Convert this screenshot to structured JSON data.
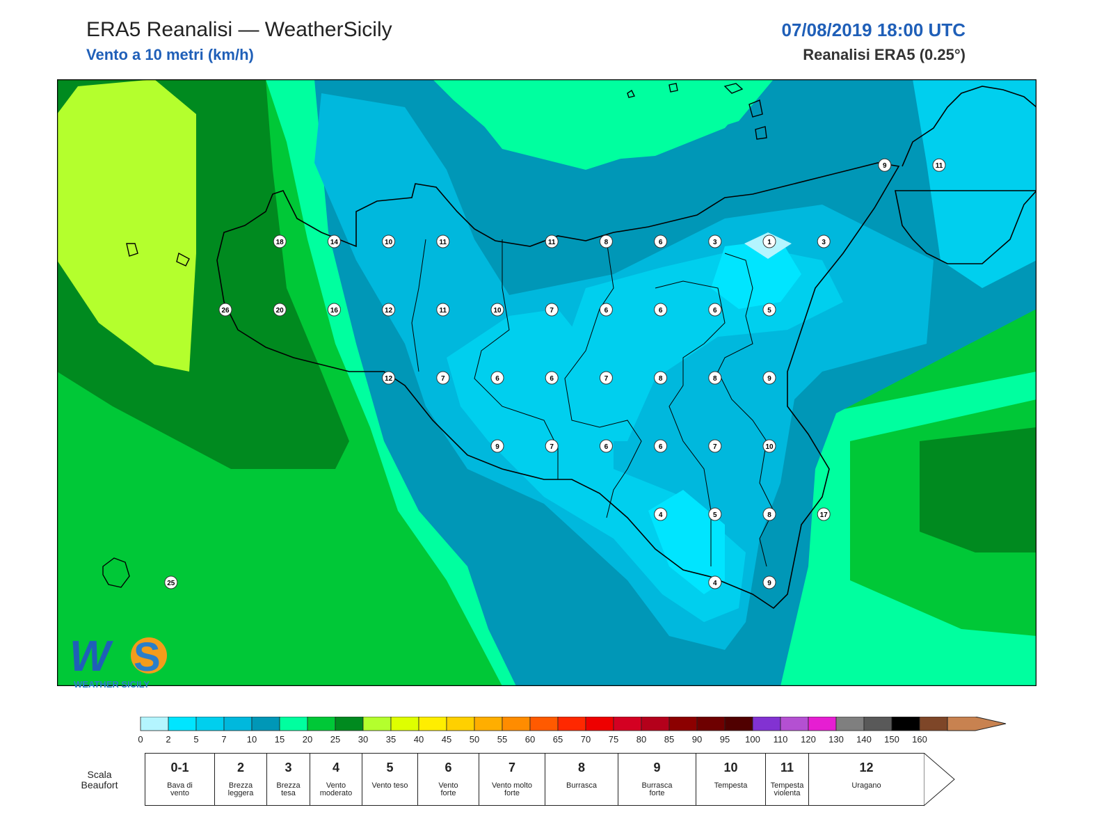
{
  "header": {
    "title": "ERA5 Reanalisi — WeatherSicily",
    "subtitle": "Vento a 10 metri (km/h)",
    "datetime": "07/08/2019 18:00 UTC",
    "source": "Reanalisi ERA5 (0.25°)"
  },
  "map": {
    "region": "Sicilia",
    "wind_speed_labels_kmh": [
      {
        "v": "9",
        "lon": 15.28,
        "lat": 38.53
      },
      {
        "v": "11",
        "lon": 15.53,
        "lat": 38.53
      },
      {
        "v": "18",
        "lon": 12.5,
        "lat": 38.25
      },
      {
        "v": "14",
        "lon": 12.75,
        "lat": 38.25
      },
      {
        "v": "10",
        "lon": 13.0,
        "lat": 38.25
      },
      {
        "v": "11",
        "lon": 13.25,
        "lat": 38.25
      },
      {
        "v": "11",
        "lon": 13.75,
        "lat": 38.25
      },
      {
        "v": "8",
        "lon": 14.0,
        "lat": 38.25
      },
      {
        "v": "6",
        "lon": 14.25,
        "lat": 38.25
      },
      {
        "v": "3",
        "lon": 14.5,
        "lat": 38.25
      },
      {
        "v": "1",
        "lon": 14.75,
        "lat": 38.25
      },
      {
        "v": "3",
        "lon": 15.0,
        "lat": 38.25
      },
      {
        "v": "26",
        "lon": 12.25,
        "lat": 38.0
      },
      {
        "v": "20",
        "lon": 12.5,
        "lat": 38.0
      },
      {
        "v": "16",
        "lon": 12.75,
        "lat": 38.0
      },
      {
        "v": "12",
        "lon": 13.0,
        "lat": 38.0
      },
      {
        "v": "11",
        "lon": 13.25,
        "lat": 38.0
      },
      {
        "v": "10",
        "lon": 13.5,
        "lat": 38.0
      },
      {
        "v": "7",
        "lon": 13.75,
        "lat": 38.0
      },
      {
        "v": "6",
        "lon": 14.0,
        "lat": 38.0
      },
      {
        "v": "6",
        "lon": 14.25,
        "lat": 38.0
      },
      {
        "v": "6",
        "lon": 14.5,
        "lat": 38.0
      },
      {
        "v": "5",
        "lon": 14.75,
        "lat": 38.0
      },
      {
        "v": "12",
        "lon": 13.0,
        "lat": 37.75
      },
      {
        "v": "7",
        "lon": 13.25,
        "lat": 37.75
      },
      {
        "v": "6",
        "lon": 13.5,
        "lat": 37.75
      },
      {
        "v": "6",
        "lon": 13.75,
        "lat": 37.75
      },
      {
        "v": "7",
        "lon": 14.0,
        "lat": 37.75
      },
      {
        "v": "8",
        "lon": 14.25,
        "lat": 37.75
      },
      {
        "v": "8",
        "lon": 14.5,
        "lat": 37.75
      },
      {
        "v": "9",
        "lon": 14.75,
        "lat": 37.75
      },
      {
        "v": "9",
        "lon": 13.5,
        "lat": 37.5
      },
      {
        "v": "7",
        "lon": 13.75,
        "lat": 37.5
      },
      {
        "v": "6",
        "lon": 14.0,
        "lat": 37.5
      },
      {
        "v": "6",
        "lon": 14.25,
        "lat": 37.5
      },
      {
        "v": "7",
        "lon": 14.5,
        "lat": 37.5
      },
      {
        "v": "10",
        "lon": 14.75,
        "lat": 37.5
      },
      {
        "v": "4",
        "lon": 14.25,
        "lat": 37.25
      },
      {
        "v": "5",
        "lon": 14.5,
        "lat": 37.25
      },
      {
        "v": "8",
        "lon": 14.75,
        "lat": 37.25
      },
      {
        "v": "17",
        "lon": 15.0,
        "lat": 37.25
      },
      {
        "v": "25",
        "lon": 12.0,
        "lat": 37.0
      },
      {
        "v": "4",
        "lon": 14.5,
        "lat": 37.0
      },
      {
        "v": "9",
        "lon": 14.75,
        "lat": 37.0
      }
    ]
  },
  "colorbar": {
    "ticks": [
      "0",
      "2",
      "5",
      "7",
      "10",
      "15",
      "20",
      "25",
      "30",
      "35",
      "40",
      "45",
      "50",
      "55",
      "60",
      "65",
      "70",
      "75",
      "80",
      "85",
      "90",
      "95",
      "100",
      "110",
      "120",
      "130",
      "140",
      "150",
      "160"
    ],
    "colors": [
      "#b4f5ff",
      "#00e5ff",
      "#00cfee",
      "#00b8dd",
      "#0097b7",
      "#00ff9f",
      "#00c837",
      "#008a1f",
      "#b4ff2d",
      "#deff00",
      "#ffee00",
      "#ffd000",
      "#ffae00",
      "#ff8c00",
      "#ff5a00",
      "#ff2800",
      "#ee0000",
      "#d40022",
      "#b4001b",
      "#8c0000",
      "#6e0000",
      "#500000",
      "#8232d2",
      "#b450d2",
      "#e61ed2",
      "#7f7f7f",
      "#595959",
      "#000000",
      "#7e4628",
      "#c88250"
    ]
  },
  "beaufort": {
    "label": "Scala\nBeaufort",
    "classes": [
      {
        "n": "0-1",
        "desc": "Bava di\nvento"
      },
      {
        "n": "2",
        "desc": "Brezza\nleggera"
      },
      {
        "n": "3",
        "desc": "Brezza\ntesa"
      },
      {
        "n": "4",
        "desc": "Vento\nmoderato"
      },
      {
        "n": "5",
        "desc": "Vento teso"
      },
      {
        "n": "6",
        "desc": "Vento\nforte"
      },
      {
        "n": "7",
        "desc": "Vento molto\nforte"
      },
      {
        "n": "8",
        "desc": "Burrasca"
      },
      {
        "n": "9",
        "desc": "Burrasca\nforte"
      },
      {
        "n": "10",
        "desc": "Tempesta"
      },
      {
        "n": "11",
        "desc": "Tempesta\nviolenta"
      },
      {
        "n": "12",
        "desc": "Uragano"
      }
    ]
  },
  "logo": {
    "text": "WS",
    "caption": "WEATHER SICILY"
  }
}
